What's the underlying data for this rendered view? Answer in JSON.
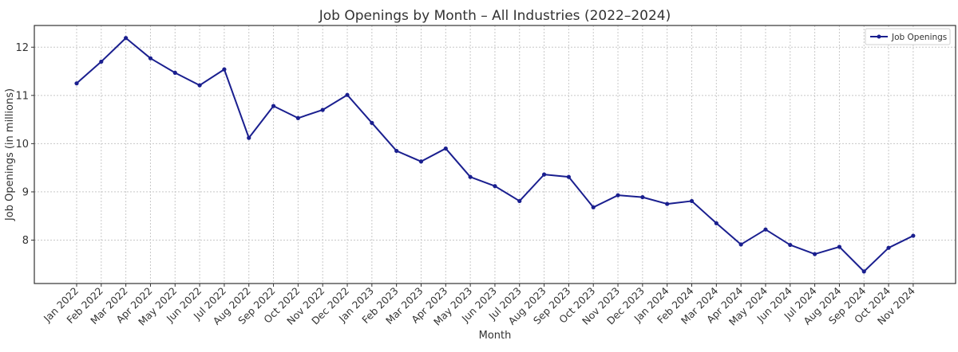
{
  "chart_data": {
    "type": "line",
    "title": "Job Openings by Month – All Industries (2022–2024)",
    "xlabel": "Month",
    "ylabel": "Job Openings (in millions)",
    "ylim": [
      7.1,
      12.45
    ],
    "yticks": [
      8,
      9,
      10,
      11,
      12
    ],
    "grid": true,
    "legend_position": "top-right",
    "categories": [
      "Jan 2022",
      "Feb 2022",
      "Mar 2022",
      "Apr 2022",
      "May 2022",
      "Jun 2022",
      "Jul 2022",
      "Aug 2022",
      "Sep 2022",
      "Oct 2022",
      "Nov 2022",
      "Dec 2022",
      "Jan 2023",
      "Feb 2023",
      "Mar 2023",
      "Apr 2023",
      "May 2023",
      "Jun 2023",
      "Jul 2023",
      "Aug 2023",
      "Sep 2023",
      "Oct 2023",
      "Nov 2023",
      "Dec 2023",
      "Jan 2024",
      "Feb 2024",
      "Mar 2024",
      "Apr 2024",
      "May 2024",
      "Jun 2024",
      "Jul 2024",
      "Aug 2024",
      "Sep 2024",
      "Oct 2024",
      "Nov 2024"
    ],
    "series": [
      {
        "name": "Job Openings",
        "color": "#1a1f8f",
        "values": [
          11.25,
          11.7,
          12.19,
          11.77,
          11.47,
          11.21,
          11.54,
          10.12,
          10.78,
          10.53,
          10.7,
          11.01,
          10.43,
          9.85,
          9.63,
          9.9,
          9.31,
          9.12,
          8.81,
          9.36,
          9.31,
          8.68,
          8.93,
          8.89,
          8.75,
          8.81,
          8.35,
          7.91,
          8.22,
          7.9,
          7.71,
          7.86,
          7.35,
          7.84,
          8.09
        ]
      }
    ]
  }
}
